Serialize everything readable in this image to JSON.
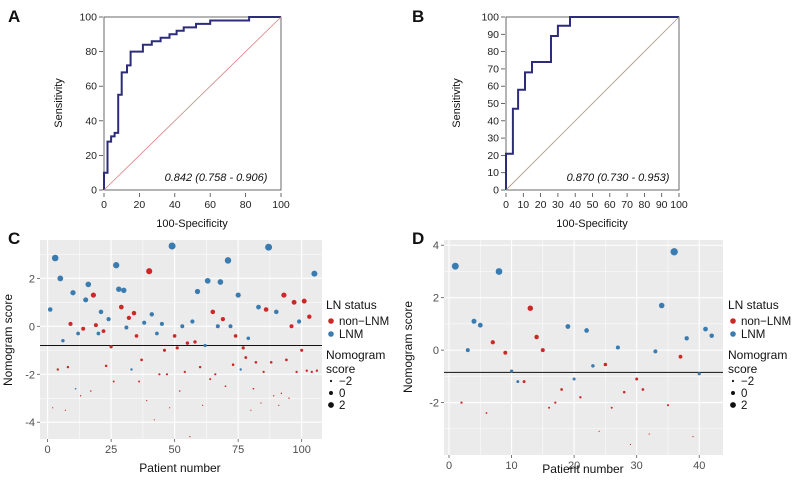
{
  "chart_data": [
    {
      "panel": "A",
      "type": "line",
      "xlabel": "100-Specificity",
      "ylabel": "Sensitivity",
      "xlim": [
        0,
        100
      ],
      "ylim": [
        0,
        100
      ],
      "xticks": [
        0,
        20,
        40,
        60,
        80,
        100
      ],
      "yticks": [
        0,
        20,
        40,
        60,
        80,
        100
      ],
      "annotation": "0.842 (0.758 - 0.906)",
      "series": [
        {
          "name": "ROC",
          "color": "#2c2c7a",
          "points": [
            [
              0,
              0
            ],
            [
              0,
              10
            ],
            [
              2,
              10
            ],
            [
              2,
              28
            ],
            [
              4,
              28
            ],
            [
              4,
              31
            ],
            [
              6,
              31
            ],
            [
              6,
              33
            ],
            [
              8,
              33
            ],
            [
              8,
              55
            ],
            [
              10,
              55
            ],
            [
              10,
              68
            ],
            [
              13,
              68
            ],
            [
              13,
              72
            ],
            [
              15,
              72
            ],
            [
              15,
              80
            ],
            [
              22,
              80
            ],
            [
              22,
              84
            ],
            [
              27,
              84
            ],
            [
              27,
              86
            ],
            [
              32,
              86
            ],
            [
              32,
              88
            ],
            [
              37,
              88
            ],
            [
              37,
              90
            ],
            [
              41,
              90
            ],
            [
              41,
              92
            ],
            [
              45,
              92
            ],
            [
              45,
              94
            ],
            [
              52,
              94
            ],
            [
              52,
              96
            ],
            [
              60,
              96
            ],
            [
              60,
              98
            ],
            [
              82,
              98
            ],
            [
              82,
              100
            ],
            [
              100,
              100
            ]
          ]
        },
        {
          "name": "reference",
          "color": "#d98080",
          "points": [
            [
              0,
              0
            ],
            [
              100,
              100
            ]
          ]
        }
      ]
    },
    {
      "panel": "B",
      "type": "line",
      "xlabel": "100-Specificity",
      "ylabel": "Sensitivity",
      "xlim": [
        0,
        100
      ],
      "ylim": [
        0,
        100
      ],
      "xticks": [
        0,
        10,
        20,
        30,
        40,
        50,
        60,
        70,
        80,
        90,
        100
      ],
      "yticks": [
        0,
        10,
        20,
        30,
        40,
        50,
        60,
        70,
        80,
        90,
        100
      ],
      "annotation": "0.870 (0.730 - 0.953)",
      "series": [
        {
          "name": "ROC",
          "color": "#2c2c7a",
          "points": [
            [
              0,
              0
            ],
            [
              0,
              21
            ],
            [
              4,
              21
            ],
            [
              4,
              47
            ],
            [
              7,
              47
            ],
            [
              7,
              58
            ],
            [
              11,
              58
            ],
            [
              11,
              68
            ],
            [
              15,
              68
            ],
            [
              15,
              74
            ],
            [
              26,
              74
            ],
            [
              26,
              89
            ],
            [
              30,
              89
            ],
            [
              30,
              95
            ],
            [
              37,
              95
            ],
            [
              37,
              100
            ],
            [
              100,
              100
            ]
          ]
        },
        {
          "name": "reference",
          "color": "#d98080",
          "points": [
            [
              0,
              0
            ],
            [
              100,
              100
            ]
          ]
        }
      ]
    },
    {
      "panel": "C",
      "type": "scatter",
      "xlabel": "Patient number",
      "ylabel": "Nomogram score",
      "xlim": [
        -3,
        108
      ],
      "ylim": [
        -4.7,
        3.6
      ],
      "xticks": [
        0,
        25,
        50,
        75,
        100
      ],
      "yticks": [
        -4,
        -2,
        0,
        2
      ],
      "cutoff": -0.8,
      "legend": {
        "title": "LN status",
        "entries": [
          "non−LNM",
          "LNM"
        ],
        "size_title_1": "Nomogram",
        "size_title_2": "score",
        "size_labels": [
          "−2",
          "0",
          "2"
        ]
      },
      "colors": {
        "nonLNM": "#cc2828",
        "LNM": "#3a7bb0",
        "cutoff": "#111111",
        "panel_bg": "#ebebeb",
        "grid": "#ffffff"
      },
      "points": [
        [
          1,
          0.7,
          1
        ],
        [
          2,
          -3.4,
          0
        ],
        [
          3,
          2.85,
          1
        ],
        [
          4,
          -1.8,
          0
        ],
        [
          5,
          2.0,
          1
        ],
        [
          6,
          -0.6,
          1
        ],
        [
          7,
          -3.5,
          0
        ],
        [
          8,
          -1.7,
          0
        ],
        [
          9,
          0.1,
          0
        ],
        [
          10,
          1.4,
          1
        ],
        [
          11,
          -2.6,
          1
        ],
        [
          12,
          -0.3,
          1
        ],
        [
          13,
          -2.9,
          0
        ],
        [
          14,
          -0.1,
          0
        ],
        [
          15,
          1.1,
          1
        ],
        [
          16,
          1.75,
          1
        ],
        [
          17,
          -2.7,
          0
        ],
        [
          18,
          1.3,
          0
        ],
        [
          19,
          0.05,
          0
        ],
        [
          20,
          -0.3,
          1
        ],
        [
          21,
          0.6,
          1
        ],
        [
          22,
          -0.2,
          0
        ],
        [
          23,
          -1.65,
          0
        ],
        [
          24,
          0.3,
          1
        ],
        [
          25,
          -0.85,
          0
        ],
        [
          26,
          -2.3,
          0
        ],
        [
          27,
          2.55,
          1
        ],
        [
          28,
          1.55,
          1
        ],
        [
          29,
          0.8,
          0
        ],
        [
          30,
          1.5,
          1
        ],
        [
          31,
          -0.05,
          1
        ],
        [
          32,
          0.35,
          0
        ],
        [
          33,
          -1.8,
          1
        ],
        [
          34,
          0.55,
          0
        ],
        [
          35,
          -0.4,
          0
        ],
        [
          36,
          -2.3,
          0
        ],
        [
          37,
          -1.4,
          0
        ],
        [
          38,
          0.15,
          1
        ],
        [
          39,
          -3.1,
          0
        ],
        [
          40,
          2.3,
          0
        ],
        [
          41,
          0.5,
          1
        ],
        [
          42,
          -3.9,
          0
        ],
        [
          43,
          -0.3,
          1
        ],
        [
          44,
          -2.0,
          0
        ],
        [
          45,
          0.1,
          1
        ],
        [
          46,
          -1.0,
          0
        ],
        [
          47,
          -2.0,
          0
        ],
        [
          48,
          -3.4,
          0
        ],
        [
          49,
          3.35,
          1
        ],
        [
          50,
          -0.4,
          0
        ],
        [
          51,
          -0.9,
          0
        ],
        [
          52,
          -2.7,
          0
        ],
        [
          53,
          0.0,
          1
        ],
        [
          54,
          -1.9,
          0
        ],
        [
          55,
          -0.7,
          0
        ],
        [
          56,
          -4.6,
          0
        ],
        [
          57,
          0.2,
          1
        ],
        [
          58,
          -0.65,
          0
        ],
        [
          59,
          1.45,
          1
        ],
        [
          60,
          -1.7,
          0
        ],
        [
          61,
          -3.3,
          0
        ],
        [
          62,
          -0.8,
          1
        ],
        [
          63,
          1.9,
          1
        ],
        [
          64,
          -2.2,
          0
        ],
        [
          65,
          0.6,
          0
        ],
        [
          66,
          -2.0,
          0
        ],
        [
          67,
          0.0,
          1
        ],
        [
          68,
          1.85,
          1
        ],
        [
          69,
          0.3,
          0
        ],
        [
          70,
          -2.5,
          0
        ],
        [
          71,
          2.75,
          1
        ],
        [
          72,
          0.0,
          1
        ],
        [
          73,
          -1.6,
          0
        ],
        [
          74,
          -0.4,
          0
        ],
        [
          75,
          1.3,
          1
        ],
        [
          76,
          -1.8,
          1
        ],
        [
          77,
          -0.9,
          0
        ],
        [
          78,
          -1.3,
          0
        ],
        [
          79,
          -0.5,
          1
        ],
        [
          80,
          -3.5,
          0
        ],
        [
          81,
          -2.6,
          0
        ],
        [
          82,
          -1.5,
          0
        ],
        [
          83,
          0.8,
          1
        ],
        [
          84,
          -3.2,
          0
        ],
        [
          85,
          -1.9,
          0
        ],
        [
          86,
          0.7,
          0
        ],
        [
          87,
          3.3,
          1
        ],
        [
          88,
          -1.5,
          0
        ],
        [
          89,
          -2.9,
          0
        ],
        [
          90,
          0.6,
          1
        ],
        [
          91,
          -3.3,
          0
        ],
        [
          92,
          -2.8,
          0
        ],
        [
          93,
          1.3,
          0
        ],
        [
          94,
          -1.4,
          0
        ],
        [
          95,
          -3.0,
          0
        ],
        [
          96,
          0.0,
          0
        ],
        [
          97,
          1.0,
          0
        ],
        [
          98,
          -1.9,
          0
        ],
        [
          99,
          0.2,
          1
        ],
        [
          100,
          -1.0,
          0
        ],
        [
          101,
          1.05,
          0
        ],
        [
          102,
          -1.85,
          0
        ],
        [
          103,
          0.4,
          0
        ],
        [
          104,
          -1.9,
          0
        ],
        [
          105,
          2.2,
          1
        ],
        [
          106,
          -1.85,
          0
        ]
      ]
    },
    {
      "panel": "D",
      "type": "scatter",
      "xlabel": "Patient number",
      "ylabel": "Nomogram score",
      "xlim": [
        -0.8,
        43.8
      ],
      "ylim": [
        -4.0,
        4.2
      ],
      "xticks": [
        0,
        10,
        20,
        30,
        40
      ],
      "yticks": [
        -2,
        0,
        2,
        4
      ],
      "cutoff": -0.85,
      "legend": {
        "title": "LN status",
        "entries": [
          "non−LNM",
          "LNM"
        ],
        "size_title_1": "Nomogram",
        "size_title_2": "score",
        "size_labels": [
          "−2",
          "0",
          "2"
        ]
      },
      "colors": {
        "nonLNM": "#cc2828",
        "LNM": "#3a7bb0",
        "cutoff": "#111111",
        "panel_bg": "#ebebeb",
        "grid": "#ffffff"
      },
      "points": [
        [
          1,
          3.2,
          1
        ],
        [
          2,
          -2.0,
          0
        ],
        [
          3,
          0.0,
          1
        ],
        [
          4,
          1.1,
          1
        ],
        [
          5,
          0.95,
          1
        ],
        [
          6,
          -2.4,
          0
        ],
        [
          7,
          0.3,
          0
        ],
        [
          8,
          3.0,
          1
        ],
        [
          9,
          -0.1,
          0
        ],
        [
          10,
          -0.8,
          1
        ],
        [
          11,
          -1.2,
          1
        ],
        [
          12,
          -1.2,
          0
        ],
        [
          13,
          1.6,
          0
        ],
        [
          14,
          0.5,
          0
        ],
        [
          15,
          0.0,
          0
        ],
        [
          16,
          -2.2,
          0
        ],
        [
          17,
          -2.0,
          0
        ],
        [
          18,
          -1.5,
          0
        ],
        [
          19,
          0.9,
          1
        ],
        [
          20,
          -1.1,
          1
        ],
        [
          21,
          -1.8,
          0
        ],
        [
          22,
          0.75,
          1
        ],
        [
          23,
          -0.6,
          1
        ],
        [
          24,
          -3.1,
          0
        ],
        [
          25,
          -0.55,
          0
        ],
        [
          26,
          -2.2,
          0
        ],
        [
          27,
          0.1,
          1
        ],
        [
          28,
          -1.6,
          0
        ],
        [
          29,
          -3.6,
          0
        ],
        [
          30,
          -1.1,
          0
        ],
        [
          31,
          -1.5,
          0
        ],
        [
          32,
          -3.2,
          0
        ],
        [
          33,
          -0.05,
          1
        ],
        [
          34,
          1.7,
          1
        ],
        [
          35,
          -2.1,
          0
        ],
        [
          36,
          3.75,
          1
        ],
        [
          37,
          -0.25,
          0
        ],
        [
          38,
          0.45,
          1
        ],
        [
          39,
          -3.3,
          0
        ],
        [
          40,
          -0.9,
          1
        ],
        [
          41,
          0.8,
          1
        ],
        [
          42,
          0.55,
          1
        ]
      ]
    }
  ]
}
